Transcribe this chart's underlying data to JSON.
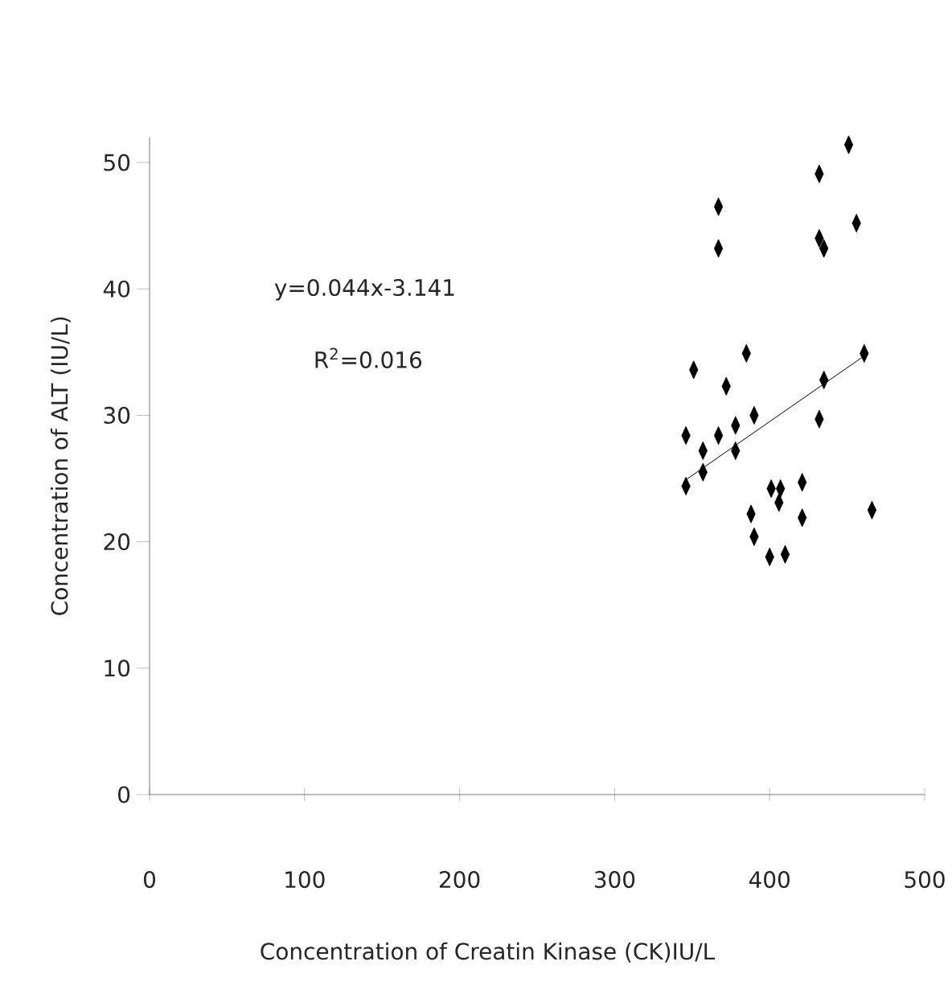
{
  "chart_data": {
    "type": "scatter",
    "xlabel": "Concentration of Creatin Kinase (CK)IU/L",
    "ylabel": "Concentration of ALT (IU/L)",
    "annotations": [
      "y=0.044x-3.141",
      "R$^{2}$=0.016"
    ],
    "series": [
      {
        "color": "#000000",
        "marker": "diamond",
        "x": [
          451,
          432,
          367,
          456,
          367,
          432,
          435,
          385,
          461,
          351,
          372,
          435,
          390,
          432,
          378,
          346,
          367,
          357,
          378,
          357,
          346,
          421,
          401,
          407,
          406,
          388,
          421,
          466,
          390,
          400,
          410
        ],
        "values": [
          51.4,
          49.1,
          46.5,
          45.2,
          43.2,
          44.0,
          43.2,
          34.9,
          34.9,
          33.6,
          32.3,
          32.8,
          30.0,
          29.7,
          29.2,
          28.4,
          28.4,
          27.2,
          27.2,
          25.5,
          24.4,
          24.7,
          24.2,
          24.2,
          23.1,
          22.2,
          21.9,
          22.5,
          20.4,
          18.8,
          19.0
        ]
      },
      {
        "type": "line",
        "color": "#000000",
        "marker": "none",
        "x": [
          346,
          461
        ],
        "values": [
          24.9,
          34.7
        ]
      }
    ],
    "xlim": [
      0,
      500
    ],
    "ylim": [
      0,
      52
    ],
    "xticks": [
      0,
      100,
      200,
      300,
      400,
      500
    ],
    "yticks": [
      0,
      10,
      20,
      30,
      40,
      50
    ],
    "grid": false
  }
}
